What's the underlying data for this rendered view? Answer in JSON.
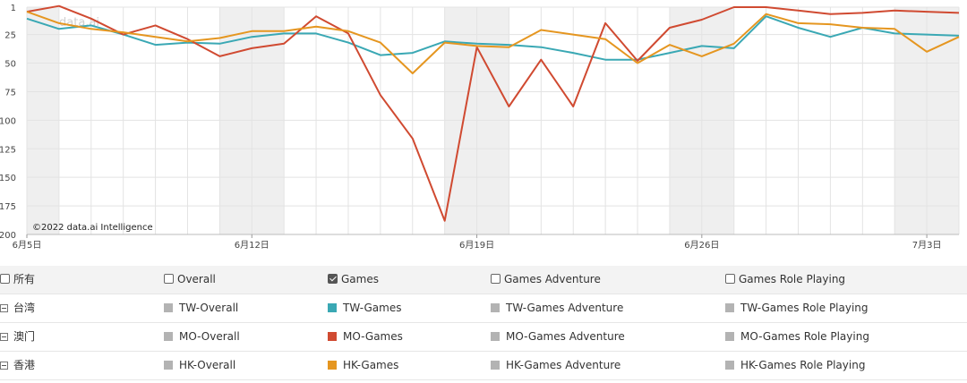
{
  "chart_data": {
    "type": "line",
    "x": [
      "6月5日",
      "6月6日",
      "6月7日",
      "6月8日",
      "6月9日",
      "6月10日",
      "6月11日",
      "6月12日",
      "6月13日",
      "6月14日",
      "6月15日",
      "6月16日",
      "6月17日",
      "6月18日",
      "6月19日",
      "6月20日",
      "6月21日",
      "6月22日",
      "6月23日",
      "6月24日",
      "6月25日",
      "6月26日",
      "6月27日",
      "6月28日",
      "6月29日",
      "6月30日",
      "7月1日",
      "7月2日",
      "7月3日",
      "7月4日"
    ],
    "xticks": [
      "6月5日",
      "6月12日",
      "6月19日",
      "6月26日",
      "7月3日"
    ],
    "ylim": [
      200,
      1
    ],
    "yticks": [
      1,
      25,
      50,
      75,
      100,
      125,
      150,
      175,
      200
    ],
    "reversed_y": true,
    "grid": true,
    "weekend_bands": true,
    "credit": "©2022 data.ai Intelligence",
    "watermark": "data.ai",
    "series": [
      {
        "name": "TW-Games",
        "color": "#3aa8b4",
        "values": [
          11,
          20,
          17,
          25,
          34,
          32,
          33,
          27,
          24,
          24,
          32,
          43,
          41,
          31,
          33,
          34,
          36,
          41,
          47,
          47,
          41,
          35,
          37,
          9,
          19,
          27,
          19,
          24,
          25,
          26
        ]
      },
      {
        "name": "MO-Games",
        "color": "#d04a31",
        "values": [
          5,
          0,
          11,
          25,
          17,
          29,
          44,
          37,
          33,
          9,
          24,
          78,
          116,
          188,
          36,
          88,
          47,
          88,
          15,
          48,
          19,
          12,
          1,
          1,
          4,
          7,
          6,
          4,
          5,
          6
        ]
      },
      {
        "name": "HK-Games",
        "color": "#e59620",
        "values": [
          5,
          15,
          20,
          23,
          27,
          31,
          28,
          22,
          22,
          18,
          22,
          32,
          59,
          32,
          35,
          36,
          21,
          25,
          29,
          50,
          34,
          44,
          33,
          7,
          15,
          16,
          19,
          20,
          40,
          27
        ]
      }
    ]
  },
  "legend": {
    "header": [
      {
        "label": "所有",
        "checked": false
      },
      {
        "label": "Overall",
        "checked": false
      },
      {
        "label": "Games",
        "checked": true
      },
      {
        "label": "Games Adventure",
        "checked": false
      },
      {
        "label": "Games Role Playing",
        "checked": false
      }
    ],
    "rows": [
      {
        "region": "台湾",
        "items": [
          {
            "label": "TW-Overall",
            "color": "#b3b3b3"
          },
          {
            "label": "TW-Games",
            "color": "#3aa8b4"
          },
          {
            "label": "TW-Games Adventure",
            "color": "#b3b3b3"
          },
          {
            "label": "TW-Games Role Playing",
            "color": "#b3b3b3"
          }
        ]
      },
      {
        "region": "澳门",
        "items": [
          {
            "label": "MO-Overall",
            "color": "#b3b3b3"
          },
          {
            "label": "MO-Games",
            "color": "#d04a31"
          },
          {
            "label": "MO-Games Adventure",
            "color": "#b3b3b3"
          },
          {
            "label": "MO-Games Role Playing",
            "color": "#b3b3b3"
          }
        ]
      },
      {
        "region": "香港",
        "items": [
          {
            "label": "HK-Overall",
            "color": "#b3b3b3"
          },
          {
            "label": "HK-Games",
            "color": "#e59620"
          },
          {
            "label": "HK-Games Adventure",
            "color": "#b3b3b3"
          },
          {
            "label": "HK-Games Role Playing",
            "color": "#b3b3b3"
          }
        ]
      }
    ]
  }
}
